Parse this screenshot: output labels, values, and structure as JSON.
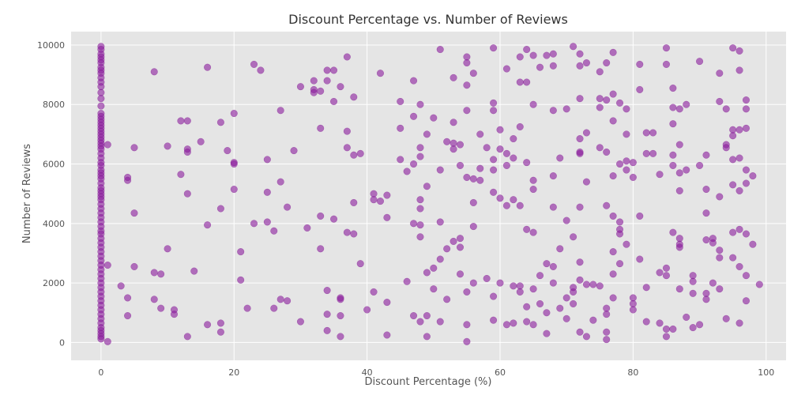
{
  "chart_data": {
    "type": "scatter",
    "title": "Discount Percentage vs. Number of Reviews",
    "xlabel": "Discount Percentage (%)",
    "ylabel": "Number of Reviews",
    "xlim": [
      -4.5,
      103
    ],
    "ylim": [
      -600,
      10450
    ],
    "xticks": [
      0,
      20,
      40,
      60,
      80,
      100
    ],
    "yticks": [
      0,
      2000,
      4000,
      6000,
      8000,
      10000
    ],
    "grid": true,
    "legend": "none",
    "colors": {
      "point": "#8b1a9c",
      "plot_background": "#e5e5e5",
      "grid": "#ffffff"
    },
    "points": [
      [
        0,
        9950
      ],
      [
        0,
        9850
      ],
      [
        0,
        9700
      ],
      [
        0,
        9600
      ],
      [
        0,
        9500
      ],
      [
        0,
        9400
      ],
      [
        0,
        9250
      ],
      [
        0,
        9150
      ],
      [
        0,
        9050
      ],
      [
        0,
        8900
      ],
      [
        0,
        8750
      ],
      [
        0,
        8600
      ],
      [
        0,
        8400
      ],
      [
        0,
        8200
      ],
      [
        0,
        7950
      ],
      [
        0,
        7700
      ],
      [
        0,
        7600
      ],
      [
        0,
        7500
      ],
      [
        0,
        7400
      ],
      [
        0,
        7300
      ],
      [
        0,
        7200
      ],
      [
        0,
        7100
      ],
      [
        0,
        7000
      ],
      [
        0,
        6900
      ],
      [
        0,
        6800
      ],
      [
        0,
        6700
      ],
      [
        0,
        6600
      ],
      [
        0,
        6500
      ],
      [
        0,
        6350
      ],
      [
        0,
        6200
      ],
      [
        0,
        6050
      ],
      [
        0,
        5950
      ],
      [
        0,
        5800
      ],
      [
        0,
        5700
      ],
      [
        0,
        5600
      ],
      [
        0,
        5500
      ],
      [
        0,
        5350
      ],
      [
        0,
        5200
      ],
      [
        0,
        5100
      ],
      [
        0,
        5000
      ],
      [
        0,
        4900
      ],
      [
        0,
        4800
      ],
      [
        0,
        4650
      ],
      [
        0,
        4500
      ],
      [
        0,
        4350
      ],
      [
        0,
        4200
      ],
      [
        0,
        4050
      ],
      [
        0,
        3900
      ],
      [
        0,
        3750
      ],
      [
        0,
        3650
      ],
      [
        0,
        3500
      ],
      [
        0,
        3350
      ],
      [
        0,
        3200
      ],
      [
        0,
        3050
      ],
      [
        0,
        2900
      ],
      [
        0,
        2750
      ],
      [
        0,
        2600
      ],
      [
        0,
        2450
      ],
      [
        0,
        2300
      ],
      [
        0,
        2150
      ],
      [
        0,
        2000
      ],
      [
        0,
        1850
      ],
      [
        0,
        1700
      ],
      [
        0,
        1550
      ],
      [
        0,
        1400
      ],
      [
        0,
        1250
      ],
      [
        0,
        1100
      ],
      [
        0,
        950
      ],
      [
        0,
        800
      ],
      [
        0,
        650
      ],
      [
        0,
        500
      ],
      [
        0,
        400
      ],
      [
        0,
        300
      ],
      [
        0,
        200
      ],
      [
        0,
        120
      ],
      [
        1,
        6650
      ],
      [
        1,
        2600
      ],
      [
        1,
        30
      ],
      [
        3,
        1900
      ],
      [
        4,
        5450
      ],
      [
        4,
        5550
      ],
      [
        4,
        1500
      ],
      [
        4,
        900
      ],
      [
        5,
        6550
      ],
      [
        5,
        4350
      ],
      [
        5,
        2550
      ],
      [
        8,
        9100
      ],
      [
        8,
        2350
      ],
      [
        8,
        1450
      ],
      [
        9,
        2300
      ],
      [
        9,
        1150
      ],
      [
        10,
        6600
      ],
      [
        10,
        3150
      ],
      [
        11,
        1100
      ],
      [
        11,
        950
      ],
      [
        12,
        7450
      ],
      [
        12,
        5650
      ],
      [
        13,
        7450
      ],
      [
        13,
        6500
      ],
      [
        13,
        6400
      ],
      [
        13,
        5000
      ],
      [
        13,
        200
      ],
      [
        14,
        2400
      ],
      [
        15,
        6750
      ],
      [
        16,
        9250
      ],
      [
        16,
        3950
      ],
      [
        16,
        600
      ],
      [
        18,
        7400
      ],
      [
        18,
        4500
      ],
      [
        18,
        650
      ],
      [
        18,
        350
      ],
      [
        19,
        6450
      ],
      [
        20,
        7700
      ],
      [
        20,
        6050
      ],
      [
        20,
        6000
      ],
      [
        20,
        5150
      ],
      [
        21,
        3050
      ],
      [
        21,
        2100
      ],
      [
        22,
        1150
      ],
      [
        23,
        9350
      ],
      [
        23,
        4000
      ],
      [
        24,
        9150
      ],
      [
        25,
        6150
      ],
      [
        25,
        5050
      ],
      [
        25,
        4050
      ],
      [
        26,
        3750
      ],
      [
        26,
        1150
      ],
      [
        27,
        7800
      ],
      [
        27,
        5400
      ],
      [
        27,
        1450
      ],
      [
        28,
        4550
      ],
      [
        28,
        1400
      ],
      [
        29,
        6450
      ],
      [
        30,
        8600
      ],
      [
        30,
        700
      ],
      [
        31,
        3850
      ],
      [
        32,
        8800
      ],
      [
        32,
        8500
      ],
      [
        32,
        8400
      ],
      [
        33,
        8450
      ],
      [
        33,
        7200
      ],
      [
        33,
        4250
      ],
      [
        33,
        3150
      ],
      [
        34,
        9150
      ],
      [
        34,
        8800
      ],
      [
        34,
        1750
      ],
      [
        34,
        950
      ],
      [
        34,
        400
      ],
      [
        35,
        9150
      ],
      [
        35,
        8100
      ],
      [
        35,
        4150
      ],
      [
        36,
        8600
      ],
      [
        36,
        1500
      ],
      [
        36,
        1450
      ],
      [
        36,
        900
      ],
      [
        36,
        200
      ],
      [
        37,
        9600
      ],
      [
        37,
        7100
      ],
      [
        37,
        6550
      ],
      [
        37,
        3700
      ],
      [
        38,
        8250
      ],
      [
        38,
        6300
      ],
      [
        38,
        4700
      ],
      [
        38,
        3650
      ],
      [
        39,
        6350
      ],
      [
        39,
        2650
      ],
      [
        40,
        1100
      ],
      [
        41,
        5000
      ],
      [
        41,
        4800
      ],
      [
        41,
        1700
      ],
      [
        42,
        9050
      ],
      [
        42,
        4750
      ],
      [
        43,
        4950
      ],
      [
        43,
        4200
      ],
      [
        43,
        1350
      ],
      [
        43,
        250
      ],
      [
        45,
        8100
      ],
      [
        45,
        7200
      ],
      [
        45,
        6150
      ],
      [
        46,
        5750
      ],
      [
        46,
        2050
      ],
      [
        47,
        8800
      ],
      [
        47,
        7600
      ],
      [
        47,
        6000
      ],
      [
        47,
        4000
      ],
      [
        47,
        900
      ],
      [
        48,
        8000
      ],
      [
        48,
        6550
      ],
      [
        48,
        6250
      ],
      [
        48,
        4800
      ],
      [
        48,
        4500
      ],
      [
        48,
        3950
      ],
      [
        48,
        3550
      ],
      [
        48,
        700
      ],
      [
        49,
        5250
      ],
      [
        49,
        7000
      ],
      [
        49,
        2350
      ],
      [
        49,
        900
      ],
      [
        49,
        200
      ],
      [
        50,
        7550
      ],
      [
        50,
        2500
      ],
      [
        50,
        1800
      ],
      [
        51,
        9850
      ],
      [
        51,
        5800
      ],
      [
        51,
        4050
      ],
      [
        51,
        2800
      ],
      [
        51,
        700
      ],
      [
        52,
        6750
      ],
      [
        52,
        3150
      ],
      [
        52,
        1450
      ],
      [
        53,
        7400
      ],
      [
        53,
        8900
      ],
      [
        53,
        6700
      ],
      [
        53,
        3400
      ],
      [
        53,
        6500
      ],
      [
        54,
        6650
      ],
      [
        54,
        5950
      ],
      [
        54,
        3500
      ],
      [
        54,
        3200
      ],
      [
        54,
        2300
      ],
      [
        55,
        9600
      ],
      [
        55,
        9400
      ],
      [
        55,
        8650
      ],
      [
        55,
        7800
      ],
      [
        55,
        5550
      ],
      [
        55,
        1700
      ],
      [
        55,
        600
      ],
      [
        55,
        30
      ],
      [
        56,
        9050
      ],
      [
        56,
        5500
      ],
      [
        56,
        4700
      ],
      [
        56,
        3900
      ],
      [
        56,
        2000
      ],
      [
        57,
        7000
      ],
      [
        57,
        5450
      ],
      [
        57,
        5850
      ],
      [
        58,
        6550
      ],
      [
        58,
        2150
      ],
      [
        59,
        9900
      ],
      [
        59,
        8050
      ],
      [
        59,
        7800
      ],
      [
        59,
        6150
      ],
      [
        59,
        5800
      ],
      [
        59,
        5050
      ],
      [
        59,
        1550
      ],
      [
        59,
        750
      ],
      [
        60,
        7150
      ],
      [
        60,
        6500
      ],
      [
        60,
        4850
      ],
      [
        60,
        2000
      ],
      [
        61,
        9200
      ],
      [
        61,
        6350
      ],
      [
        61,
        5950
      ],
      [
        61,
        4600
      ],
      [
        61,
        600
      ],
      [
        62,
        6850
      ],
      [
        62,
        6200
      ],
      [
        62,
        4800
      ],
      [
        62,
        1900
      ],
      [
        62,
        650
      ],
      [
        63,
        9600
      ],
      [
        63,
        8750
      ],
      [
        63,
        7250
      ],
      [
        63,
        4600
      ],
      [
        63,
        1900
      ],
      [
        63,
        1700
      ],
      [
        64,
        9850
      ],
      [
        64,
        8750
      ],
      [
        64,
        6050
      ],
      [
        64,
        3800
      ],
      [
        64,
        1200
      ],
      [
        64,
        700
      ],
      [
        65,
        9650
      ],
      [
        65,
        8000
      ],
      [
        65,
        5450
      ],
      [
        65,
        5150
      ],
      [
        65,
        3700
      ],
      [
        65,
        1800
      ],
      [
        65,
        600
      ],
      [
        66,
        9250
      ],
      [
        66,
        2250
      ],
      [
        66,
        1300
      ],
      [
        67,
        9650
      ],
      [
        67,
        2650
      ],
      [
        67,
        1000
      ],
      [
        67,
        300
      ],
      [
        68,
        9700
      ],
      [
        68,
        9300
      ],
      [
        68,
        7800
      ],
      [
        68,
        5600
      ],
      [
        68,
        4550
      ],
      [
        68,
        2550
      ],
      [
        68,
        2000
      ],
      [
        69,
        6200
      ],
      [
        69,
        1150
      ],
      [
        69,
        3150
      ],
      [
        70,
        7850
      ],
      [
        70,
        4100
      ],
      [
        70,
        800
      ],
      [
        70,
        1500
      ],
      [
        71,
        9950
      ],
      [
        71,
        3550
      ],
      [
        71,
        1700
      ],
      [
        71,
        1850
      ],
      [
        71,
        1300
      ],
      [
        72,
        9700
      ],
      [
        72,
        9300
      ],
      [
        72,
        6850
      ],
      [
        72,
        6350
      ],
      [
        72,
        6400
      ],
      [
        72,
        4550
      ],
      [
        72,
        2100
      ],
      [
        72,
        2700
      ],
      [
        72,
        350
      ],
      [
        72,
        8200
      ],
      [
        73,
        9400
      ],
      [
        73,
        7050
      ],
      [
        73,
        5400
      ],
      [
        73,
        1950
      ],
      [
        73,
        200
      ],
      [
        74,
        1950
      ],
      [
        74,
        750
      ],
      [
        75,
        9100
      ],
      [
        75,
        8200
      ],
      [
        75,
        7900
      ],
      [
        75,
        6550
      ],
      [
        75,
        1900
      ],
      [
        76,
        9400
      ],
      [
        76,
        8150
      ],
      [
        76,
        6400
      ],
      [
        76,
        4600
      ],
      [
        76,
        1150
      ],
      [
        76,
        950
      ],
      [
        76,
        350
      ],
      [
        76,
        100
      ],
      [
        77,
        9750
      ],
      [
        77,
        8350
      ],
      [
        77,
        7450
      ],
      [
        77,
        5600
      ],
      [
        77,
        4250
      ],
      [
        77,
        3050
      ],
      [
        77,
        2300
      ],
      [
        77,
        1500
      ],
      [
        78,
        8050
      ],
      [
        78,
        6000
      ],
      [
        78,
        4050
      ],
      [
        78,
        3800
      ],
      [
        78,
        3650
      ],
      [
        78,
        2650
      ],
      [
        79,
        7850
      ],
      [
        79,
        7000
      ],
      [
        79,
        6100
      ],
      [
        79,
        5800
      ],
      [
        79,
        3300
      ],
      [
        80,
        6050
      ],
      [
        80,
        5550
      ],
      [
        80,
        1500
      ],
      [
        80,
        1300
      ],
      [
        80,
        1100
      ],
      [
        81,
        9350
      ],
      [
        81,
        8500
      ],
      [
        81,
        4250
      ],
      [
        81,
        2800
      ],
      [
        82,
        7050
      ],
      [
        82,
        6350
      ],
      [
        82,
        1850
      ],
      [
        82,
        700
      ],
      [
        83,
        7050
      ],
      [
        83,
        6350
      ],
      [
        84,
        5650
      ],
      [
        84,
        2350
      ],
      [
        84,
        650
      ],
      [
        85,
        9900
      ],
      [
        85,
        9350
      ],
      [
        85,
        2500
      ],
      [
        85,
        2250
      ],
      [
        85,
        450
      ],
      [
        85,
        200
      ],
      [
        86,
        8550
      ],
      [
        86,
        7900
      ],
      [
        86,
        7350
      ],
      [
        86,
        5950
      ],
      [
        86,
        6300
      ],
      [
        86,
        3700
      ],
      [
        86,
        450
      ],
      [
        87,
        7850
      ],
      [
        87,
        6650
      ],
      [
        87,
        5700
      ],
      [
        87,
        5100
      ],
      [
        87,
        3500
      ],
      [
        87,
        3300
      ],
      [
        87,
        3200
      ],
      [
        87,
        1800
      ],
      [
        88,
        8000
      ],
      [
        88,
        5800
      ],
      [
        88,
        850
      ],
      [
        89,
        2250
      ],
      [
        89,
        2050
      ],
      [
        89,
        1650
      ],
      [
        89,
        500
      ],
      [
        90,
        9450
      ],
      [
        90,
        5950
      ],
      [
        90,
        600
      ],
      [
        91,
        6300
      ],
      [
        91,
        5150
      ],
      [
        91,
        4350
      ],
      [
        91,
        3450
      ],
      [
        91,
        1650
      ],
      [
        91,
        1450
      ],
      [
        92,
        3500
      ],
      [
        92,
        3350
      ],
      [
        92,
        2000
      ],
      [
        93,
        9050
      ],
      [
        93,
        8100
      ],
      [
        93,
        4900
      ],
      [
        93,
        3100
      ],
      [
        93,
        2850
      ],
      [
        93,
        1800
      ],
      [
        94,
        7850
      ],
      [
        94,
        6650
      ],
      [
        94,
        6550
      ],
      [
        94,
        800
      ],
      [
        95,
        9900
      ],
      [
        95,
        7150
      ],
      [
        95,
        6950
      ],
      [
        95,
        6150
      ],
      [
        95,
        5300
      ],
      [
        95,
        3700
      ],
      [
        95,
        2850
      ],
      [
        96,
        9800
      ],
      [
        96,
        9150
      ],
      [
        96,
        7150
      ],
      [
        96,
        6200
      ],
      [
        96,
        5100
      ],
      [
        96,
        3800
      ],
      [
        96,
        2550
      ],
      [
        96,
        650
      ],
      [
        97,
        8150
      ],
      [
        97,
        7850
      ],
      [
        97,
        7200
      ],
      [
        97,
        5800
      ],
      [
        97,
        5350
      ],
      [
        97,
        3650
      ],
      [
        97,
        2250
      ],
      [
        97,
        1400
      ],
      [
        98,
        5600
      ],
      [
        98,
        3300
      ],
      [
        99,
        1950
      ]
    ]
  }
}
